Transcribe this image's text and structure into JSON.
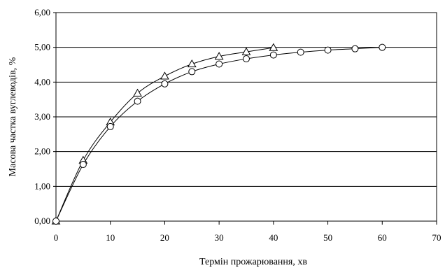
{
  "chart_data": {
    "type": "line",
    "title": "",
    "xlabel": "Термін прожарювання, хв",
    "ylabel": "Масова частка вуглеводів, %",
    "xlim": [
      0,
      70
    ],
    "ylim": [
      0,
      6
    ],
    "x_ticks": [
      0,
      10,
      20,
      30,
      40,
      50,
      60,
      70
    ],
    "x_tick_labels": [
      "0",
      "10",
      "20",
      "30",
      "40",
      "50",
      "60",
      "70"
    ],
    "y_ticks": [
      0,
      1,
      2,
      3,
      4,
      5,
      6
    ],
    "y_tick_labels": [
      "0,00",
      "1,00",
      "2,00",
      "3,00",
      "4,00",
      "5,00",
      "6,00"
    ],
    "grid": "horizontal",
    "legend": "none",
    "series": [
      {
        "marker": "triangle",
        "x": [
          0,
          5,
          10,
          15,
          20,
          25,
          30,
          35,
          40
        ],
        "y": [
          0,
          1.75,
          2.85,
          3.68,
          4.17,
          4.52,
          4.74,
          4.87,
          4.99
        ]
      },
      {
        "marker": "circle",
        "x": [
          0,
          5,
          10,
          15,
          20,
          25,
          30,
          35,
          40,
          45,
          50,
          55,
          60
        ],
        "y": [
          0,
          1.63,
          2.72,
          3.45,
          3.95,
          4.3,
          4.52,
          4.67,
          4.78,
          4.86,
          4.92,
          4.96,
          5.0
        ]
      }
    ],
    "colors": {
      "line": "#000000",
      "marker_fill": "#ffffff",
      "grid": "#000000"
    }
  }
}
